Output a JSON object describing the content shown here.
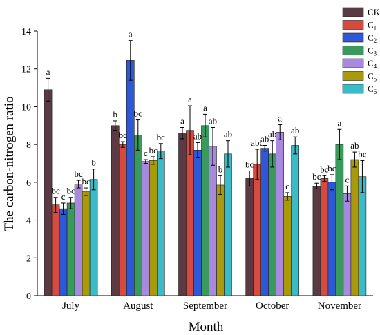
{
  "chart_data": {
    "type": "bar",
    "categories": [
      "July",
      "August",
      "September",
      "October",
      "November"
    ],
    "xlabel": "Month",
    "ylabel": "The carbon-nitrogen ratio",
    "ylim": [
      0,
      14
    ],
    "yticks": [
      0,
      2,
      4,
      6,
      8,
      10,
      12,
      14
    ],
    "grid": false,
    "legend_position": "top-right",
    "series": [
      {
        "name": "CK",
        "sub": "",
        "color": "#5b3a44",
        "values": [
          10.9,
          9.0,
          8.6,
          6.2,
          5.8
        ],
        "errors": [
          0.6,
          0.25,
          0.3,
          0.4,
          0.15
        ],
        "letters": [
          "a",
          "b",
          "a",
          "bc",
          "bc"
        ]
      },
      {
        "name": "C",
        "sub": "1",
        "color": "#d94a3e",
        "values": [
          4.8,
          8.0,
          8.75,
          6.95,
          6.2
        ],
        "errors": [
          0.4,
          0.15,
          1.3,
          0.8,
          0.15
        ],
        "letters": [
          "bc",
          "bc",
          "a",
          "abc",
          "bc"
        ]
      },
      {
        "name": "C",
        "sub": "2",
        "color": "#2f58d6",
        "values": [
          4.6,
          12.45,
          7.7,
          7.8,
          6.0
        ],
        "errors": [
          0.3,
          1.05,
          0.4,
          0.15,
          0.4
        ],
        "letters": [
          "c",
          "a",
          "ab",
          "ab",
          "bc"
        ]
      },
      {
        "name": "C",
        "sub": "3",
        "color": "#3a9a5e",
        "values": [
          4.9,
          8.5,
          9.0,
          7.5,
          8.0
        ],
        "errors": [
          0.3,
          0.8,
          0.6,
          0.7,
          0.8
        ],
        "letters": [
          "bc",
          "bc",
          "a",
          "ab",
          "a"
        ]
      },
      {
        "name": "C",
        "sub": "4",
        "color": "#a989e0",
        "values": [
          5.9,
          7.1,
          7.9,
          8.65,
          5.4
        ],
        "errors": [
          0.2,
          0.1,
          1.0,
          0.4,
          0.4
        ],
        "letters": [
          "bc",
          "c",
          "ab",
          "a",
          "c"
        ]
      },
      {
        "name": "C",
        "sub": "5",
        "color": "#a89a0a",
        "values": [
          5.5,
          7.15,
          5.85,
          5.25,
          7.2
        ],
        "errors": [
          0.2,
          0.2,
          0.5,
          0.2,
          0.4
        ],
        "letters": [
          "bc",
          "bc",
          "b",
          "c",
          "ab"
        ]
      },
      {
        "name": "C",
        "sub": "6",
        "color": "#3bbac8",
        "values": [
          6.15,
          7.65,
          7.5,
          7.95,
          6.3
        ],
        "errors": [
          0.55,
          0.4,
          0.7,
          0.45,
          0.85
        ],
        "letters": [
          "b",
          "bc",
          "ab",
          "ab",
          "bc"
        ]
      }
    ]
  }
}
